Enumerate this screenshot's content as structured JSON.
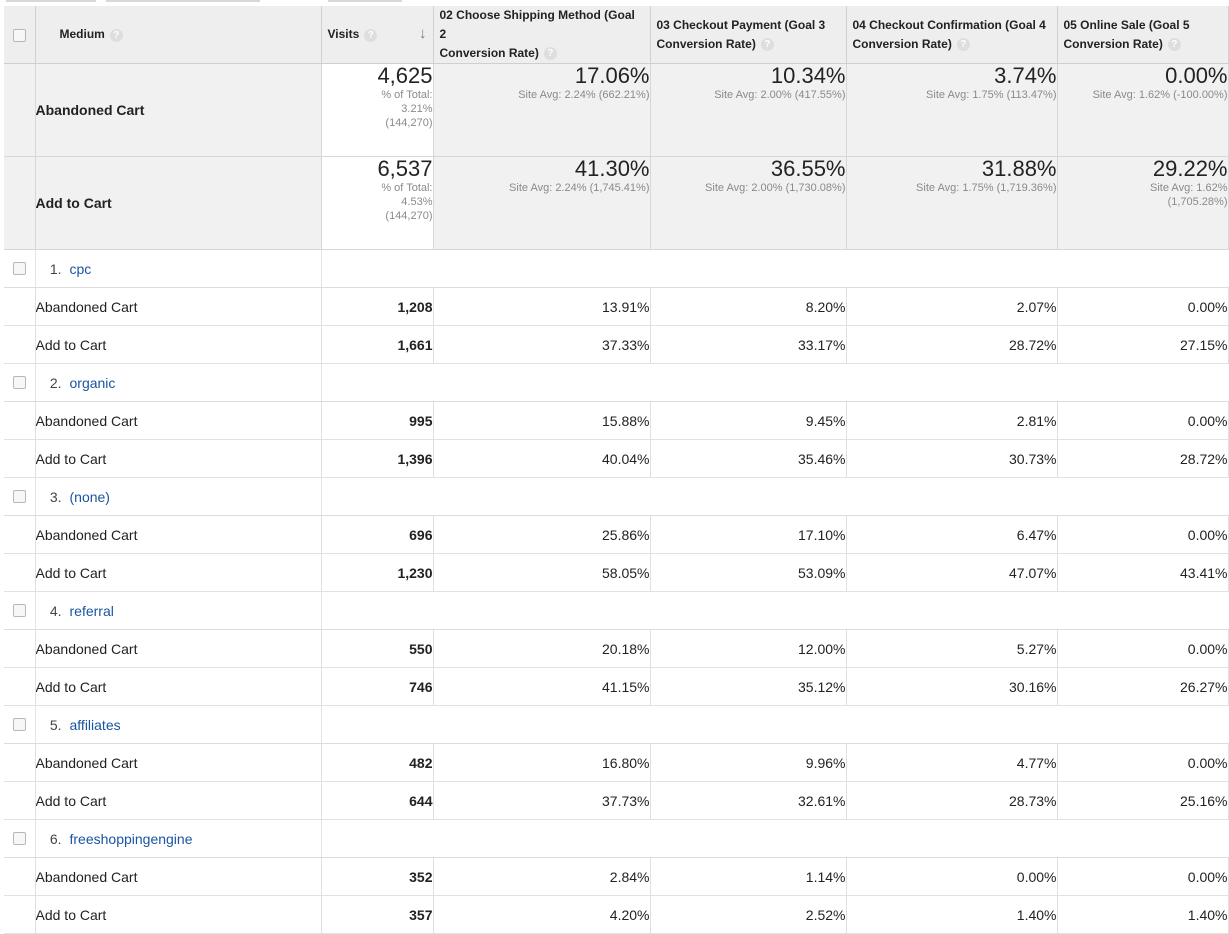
{
  "header": {
    "medium": "Medium",
    "visits": "Visits",
    "help_glyph": "?",
    "sort_glyph": "↓",
    "goals": [
      {
        "line1": "02 Choose Shipping Method (Goal 2",
        "line2": "Conversion Rate)"
      },
      {
        "line1": "03 Checkout Payment (Goal 3",
        "line2": "Conversion Rate)"
      },
      {
        "line1": "04 Checkout Confirmation (Goal 4",
        "line2": "Conversion Rate)"
      },
      {
        "line1": "05 Online Sale (Goal 5",
        "line2": "Conversion Rate)"
      }
    ]
  },
  "summary": [
    {
      "label": "Abandoned Cart",
      "visits": "4,625",
      "visits_sub": [
        "% of Total:",
        "3.21%",
        "(144,270)"
      ],
      "goals": [
        {
          "value": "17.06%",
          "sub": [
            "Site Avg: 2.24% (662.21%)"
          ]
        },
        {
          "value": "10.34%",
          "sub": [
            "Site Avg: 2.00% (417.55%)"
          ]
        },
        {
          "value": "3.74%",
          "sub": [
            "Site Avg: 1.75% (113.47%)"
          ]
        },
        {
          "value": "0.00%",
          "sub": [
            "Site Avg: 1.62% (-100.00%)"
          ]
        }
      ]
    },
    {
      "label": "Add to Cart",
      "visits": "6,537",
      "visits_sub": [
        "% of Total:",
        "4.53%",
        "(144,270)"
      ],
      "goals": [
        {
          "value": "41.30%",
          "sub": [
            "Site Avg: 2.24% (1,745.41%)"
          ]
        },
        {
          "value": "36.55%",
          "sub": [
            "Site Avg: 2.00% (1,730.08%)"
          ]
        },
        {
          "value": "31.88%",
          "sub": [
            "Site Avg: 1.75% (1,719.36%)"
          ]
        },
        {
          "value": "29.22%",
          "sub": [
            "Site Avg: 1.62%",
            "(1,705.28%)"
          ]
        }
      ]
    }
  ],
  "groups": [
    {
      "num": "1.",
      "name": "cpc",
      "rows": [
        {
          "label": "Abandoned Cart",
          "visits": "1,208",
          "goals": [
            "13.91%",
            "8.20%",
            "2.07%",
            "0.00%"
          ]
        },
        {
          "label": "Add to Cart",
          "visits": "1,661",
          "goals": [
            "37.33%",
            "33.17%",
            "28.72%",
            "27.15%"
          ]
        }
      ]
    },
    {
      "num": "2.",
      "name": "organic",
      "rows": [
        {
          "label": "Abandoned Cart",
          "visits": "995",
          "goals": [
            "15.88%",
            "9.45%",
            "2.81%",
            "0.00%"
          ]
        },
        {
          "label": "Add to Cart",
          "visits": "1,396",
          "goals": [
            "40.04%",
            "35.46%",
            "30.73%",
            "28.72%"
          ]
        }
      ]
    },
    {
      "num": "3.",
      "name": "(none)",
      "rows": [
        {
          "label": "Abandoned Cart",
          "visits": "696",
          "goals": [
            "25.86%",
            "17.10%",
            "6.47%",
            "0.00%"
          ]
        },
        {
          "label": "Add to Cart",
          "visits": "1,230",
          "goals": [
            "58.05%",
            "53.09%",
            "47.07%",
            "43.41%"
          ]
        }
      ]
    },
    {
      "num": "4.",
      "name": "referral",
      "rows": [
        {
          "label": "Abandoned Cart",
          "visits": "550",
          "goals": [
            "20.18%",
            "12.00%",
            "5.27%",
            "0.00%"
          ]
        },
        {
          "label": "Add to Cart",
          "visits": "746",
          "goals": [
            "41.15%",
            "35.12%",
            "30.16%",
            "26.27%"
          ]
        }
      ]
    },
    {
      "num": "5.",
      "name": "affiliates",
      "rows": [
        {
          "label": "Abandoned Cart",
          "visits": "482",
          "goals": [
            "16.80%",
            "9.96%",
            "4.77%",
            "0.00%"
          ]
        },
        {
          "label": "Add to Cart",
          "visits": "644",
          "goals": [
            "37.73%",
            "32.61%",
            "28.73%",
            "25.16%"
          ]
        }
      ]
    },
    {
      "num": "6.",
      "name": "freeshoppingengine",
      "rows": [
        {
          "label": "Abandoned Cart",
          "visits": "352",
          "goals": [
            "2.84%",
            "1.14%",
            "0.00%",
            "0.00%"
          ]
        },
        {
          "label": "Add to Cart",
          "visits": "357",
          "goals": [
            "4.20%",
            "2.52%",
            "1.40%",
            "1.40%"
          ]
        }
      ]
    }
  ]
}
